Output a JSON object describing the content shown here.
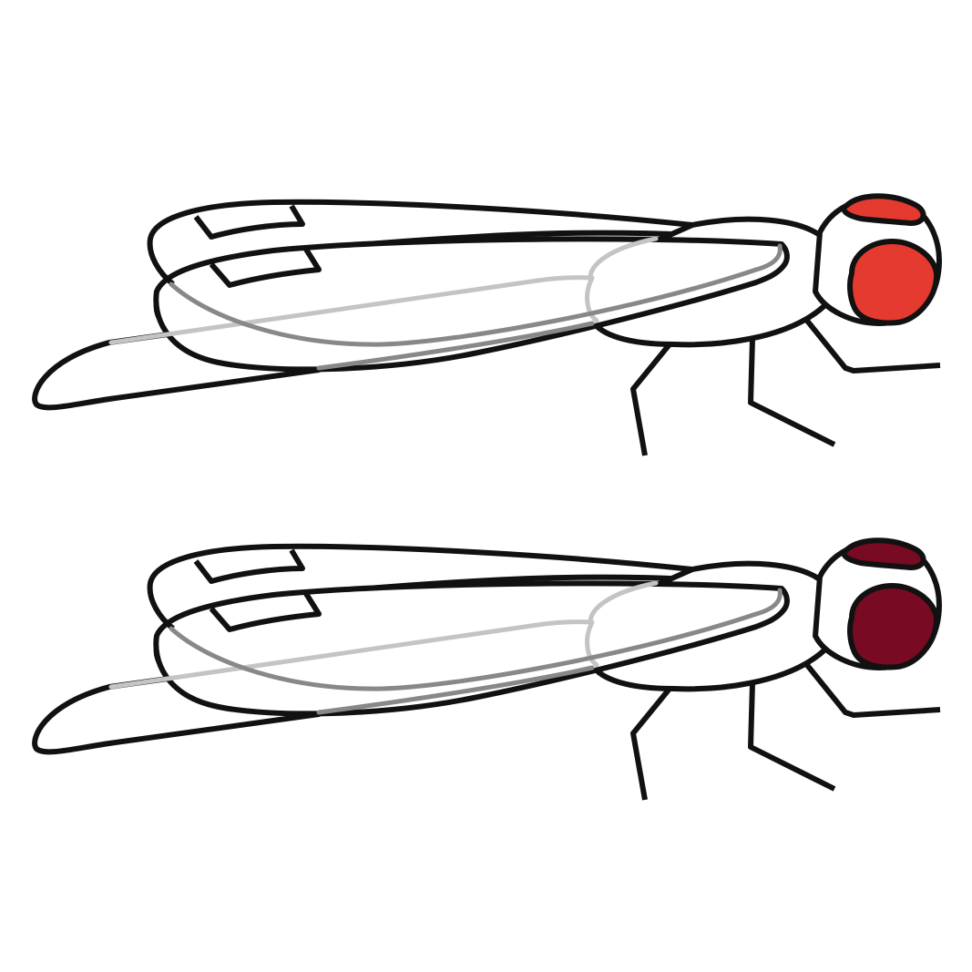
{
  "figure": {
    "flies": [
      {
        "id": "fly-top",
        "eye_color": "#e53a30"
      },
      {
        "id": "fly-bottom",
        "eye_color": "#780a23"
      }
    ],
    "colors": {
      "outline": "#111111",
      "body_fill": "#ffffff",
      "vein_light": "#c4c4c4",
      "vein_mid": "#888888"
    }
  }
}
